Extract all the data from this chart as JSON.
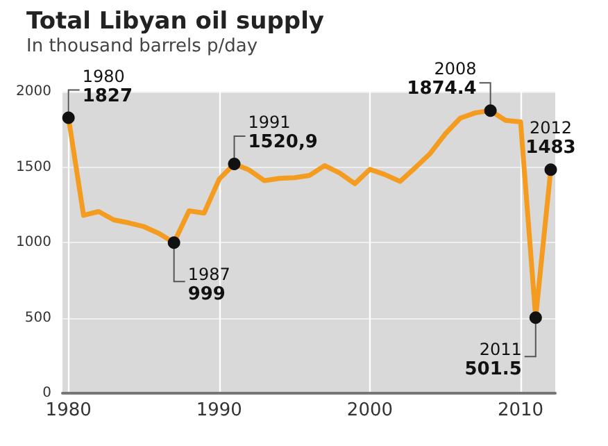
{
  "chart_data": {
    "type": "line",
    "title": "Total Libyan oil supply",
    "subtitle": "In thousand barrels p/day",
    "x": [
      1980,
      1981,
      1982,
      1983,
      1984,
      1985,
      1986,
      1987,
      1988,
      1989,
      1990,
      1991,
      1992,
      1993,
      1994,
      1995,
      1996,
      1997,
      1998,
      1999,
      2000,
      2001,
      2002,
      2003,
      2004,
      2005,
      2006,
      2007,
      2008,
      2009,
      2010,
      2011,
      2012
    ],
    "series": [
      {
        "color": "#f39c1f",
        "values": [
          1827,
          1180,
          1205,
          1150,
          1130,
          1105,
          1060,
          999,
          1210,
          1195,
          1420,
          1520.9,
          1480,
          1410,
          1425,
          1430,
          1445,
          1510,
          1460,
          1390,
          1485,
          1450,
          1405,
          1495,
          1590,
          1720,
          1825,
          1860,
          1874.4,
          1810,
          1800,
          501.5,
          1483
        ]
      }
    ],
    "xlim": [
      1979.6,
      2012.3
    ],
    "xticks": [
      1980,
      1990,
      2000,
      2010
    ],
    "ylim": [
      0,
      2000
    ],
    "yticks": [
      0,
      500,
      1000,
      1500,
      2000
    ],
    "grid": true,
    "marker": "none",
    "line_style": "solid",
    "annotations": [
      {
        "text": "1980\n1827",
        "x": 1980,
        "y": 1827
      },
      {
        "text": "1987\n999",
        "x": 1987,
        "y": 999
      },
      {
        "text": "1991\n1520,9",
        "x": 1991,
        "y": 1520.9
      },
      {
        "text": "2008\n1874.4",
        "x": 2008,
        "y": 1874.4
      },
      {
        "text": "2011\n501.5",
        "x": 2011,
        "y": 501.5
      },
      {
        "text": "2012\n1483",
        "x": 2012,
        "y": 1483
      }
    ]
  }
}
